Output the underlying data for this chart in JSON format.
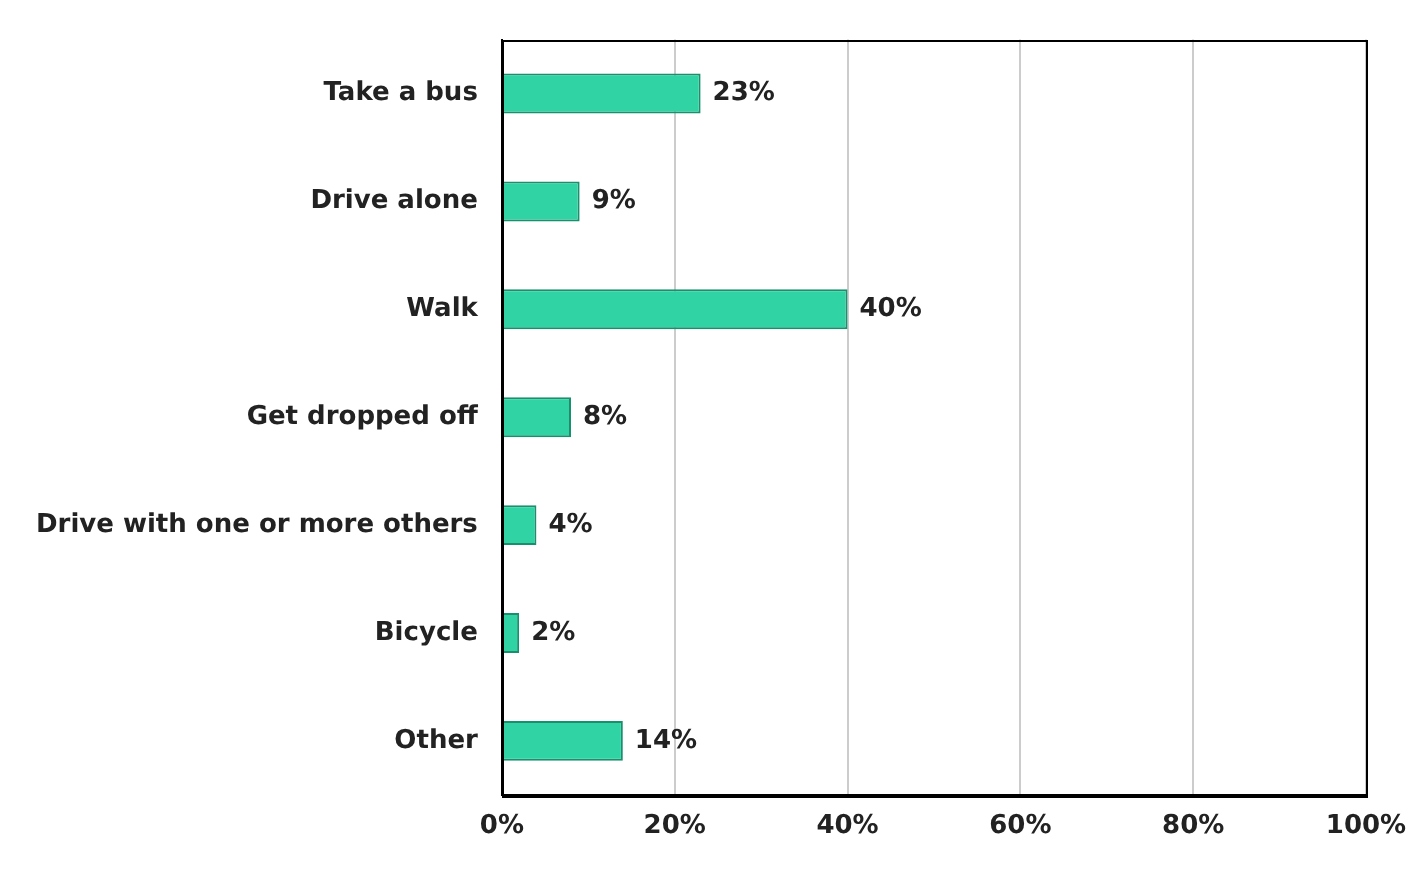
{
  "chart_data": {
    "type": "bar",
    "orientation": "horizontal",
    "categories": [
      "Take a bus",
      "Drive alone",
      "Walk",
      "Get dropped off",
      "Drive with one or more others",
      "Bicycle",
      "Other"
    ],
    "values": [
      23,
      9,
      40,
      8,
      4,
      2,
      14
    ],
    "value_labels": [
      "23%",
      "9%",
      "40%",
      "8%",
      "4%",
      "2%",
      "14%"
    ],
    "color": "#2fd3a4",
    "xlim": [
      0,
      100
    ],
    "xticks": [
      {
        "value": 0,
        "label": "0%"
      },
      {
        "value": 20,
        "label": "20%"
      },
      {
        "value": 40,
        "label": "40%"
      },
      {
        "value": 60,
        "label": "60%"
      },
      {
        "value": 80,
        "label": "80%"
      },
      {
        "value": 100,
        "label": "100%"
      }
    ],
    "grid": "x",
    "legend": false
  }
}
